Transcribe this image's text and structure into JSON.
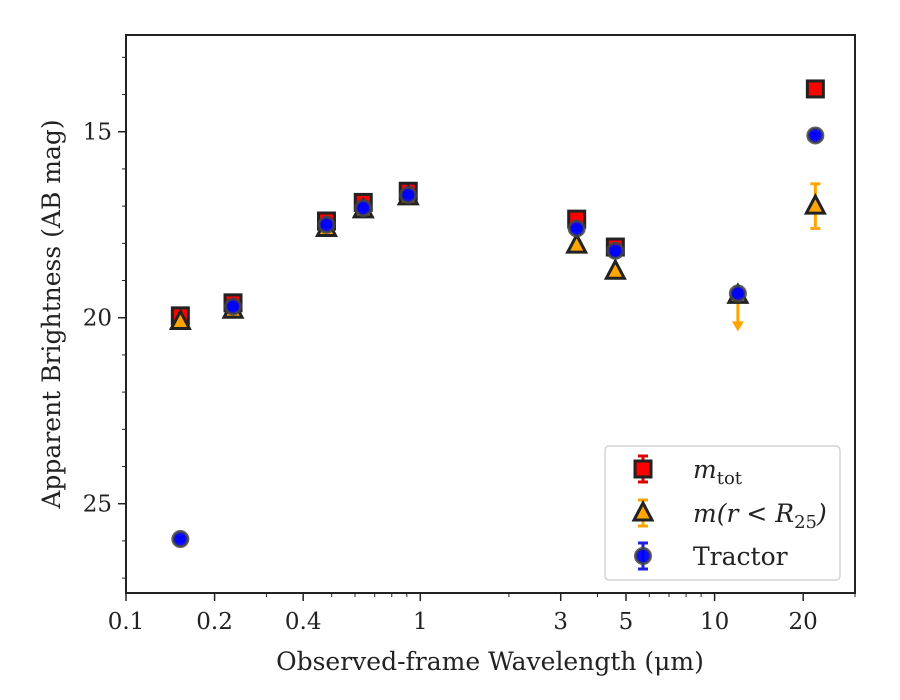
{
  "chart_data": {
    "type": "scatter",
    "title": "",
    "xlabel": "Observed-frame Wavelength (μm)",
    "ylabel": "Apparent Brightness (AB mag)",
    "xscale": "log",
    "xlim": [
      0.1,
      30
    ],
    "ylim": [
      27.4,
      12.4
    ],
    "y_inverted": true,
    "x_ticks": [
      {
        "value": 0.1,
        "label": "0.1"
      },
      {
        "value": 0.2,
        "label": "0.2"
      },
      {
        "value": 0.4,
        "label": "0.4"
      },
      {
        "value": 1,
        "label": "1"
      },
      {
        "value": 3,
        "label": "3"
      },
      {
        "value": 5,
        "label": "5"
      },
      {
        "value": 10,
        "label": "10"
      },
      {
        "value": 20,
        "label": "20"
      }
    ],
    "x_minor_ticks": [
      0.3,
      0.5,
      0.6,
      0.7,
      0.8,
      0.9,
      2,
      4,
      6,
      7,
      8,
      9,
      30
    ],
    "y_ticks": [
      {
        "value": 15,
        "label": "15"
      },
      {
        "value": 20,
        "label": "20"
      },
      {
        "value": 25,
        "label": "25"
      }
    ],
    "y_minor_ticks": [
      13,
      14,
      16,
      17,
      18,
      19,
      21,
      22,
      23,
      24,
      26,
      27
    ],
    "grid": false,
    "legend_position": "bottom-right",
    "series": [
      {
        "name": "m_tot",
        "marker": "square",
        "color": "#ff0000",
        "edge_color": "#222222",
        "points": [
          {
            "x": 0.153,
            "y": 19.95,
            "yerr": 0.1
          },
          {
            "x": 0.231,
            "y": 19.6,
            "yerr": 0.05
          },
          {
            "x": 0.48,
            "y": 17.4,
            "yerr": 0.1
          },
          {
            "x": 0.64,
            "y": 16.9,
            "yerr": 0.1
          },
          {
            "x": 0.91,
            "y": 16.6,
            "yerr": 0.1
          },
          {
            "x": 3.4,
            "y": 17.35,
            "yerr": 0.05
          },
          {
            "x": 4.6,
            "y": 18.1,
            "yerr": 0.05
          },
          {
            "x": 22.0,
            "y": 13.85,
            "yerr": 0.05
          }
        ]
      },
      {
        "name": "m(r < R25)",
        "marker": "triangle",
        "color": "#ffa500",
        "edge_color": "#222222",
        "points": [
          {
            "x": 0.153,
            "y": 20.1,
            "yerr": 0.05
          },
          {
            "x": 0.231,
            "y": 19.8,
            "yerr": 0.05
          },
          {
            "x": 0.48,
            "y": 17.6,
            "yerr": 0.05
          },
          {
            "x": 0.64,
            "y": 17.1,
            "yerr": 0.05
          },
          {
            "x": 0.91,
            "y": 16.75,
            "yerr": 0.05
          },
          {
            "x": 3.4,
            "y": 18.05,
            "yerr": 0.05
          },
          {
            "x": 4.6,
            "y": 18.75,
            "yerr": 0.05
          },
          {
            "x": 12.0,
            "y": 19.4,
            "yerr": 0,
            "upper_limit": true
          },
          {
            "x": 22.0,
            "y": 17.0,
            "yerr": 0.6
          }
        ]
      },
      {
        "name": "Tractor",
        "marker": "circle",
        "color": "#0000ff",
        "edge_color": "#444444",
        "points": [
          {
            "x": 0.153,
            "y": 25.95,
            "yerr": 0.05
          },
          {
            "x": 0.231,
            "y": 19.7,
            "yerr": 0.05
          },
          {
            "x": 0.48,
            "y": 17.5,
            "yerr": 0.05
          },
          {
            "x": 0.64,
            "y": 17.05,
            "yerr": 0.05
          },
          {
            "x": 0.91,
            "y": 16.7,
            "yerr": 0.05
          },
          {
            "x": 3.4,
            "y": 17.6,
            "yerr": 0.05
          },
          {
            "x": 4.6,
            "y": 18.2,
            "yerr": 0.05
          },
          {
            "x": 12.0,
            "y": 19.35,
            "yerr": 0.05
          },
          {
            "x": 22.0,
            "y": 15.1,
            "yerr": 0.05
          }
        ]
      }
    ],
    "legend": [
      {
        "series": "m_tot",
        "label_main": "m",
        "label_sub": "tot",
        "label_rest": ""
      },
      {
        "series": "m(r < R25)",
        "label_main": "m(r < R",
        "label_sub": "25",
        "label_rest": ")"
      },
      {
        "series": "Tractor",
        "label_main": "Tractor",
        "label_sub": "",
        "label_rest": ""
      }
    ]
  }
}
